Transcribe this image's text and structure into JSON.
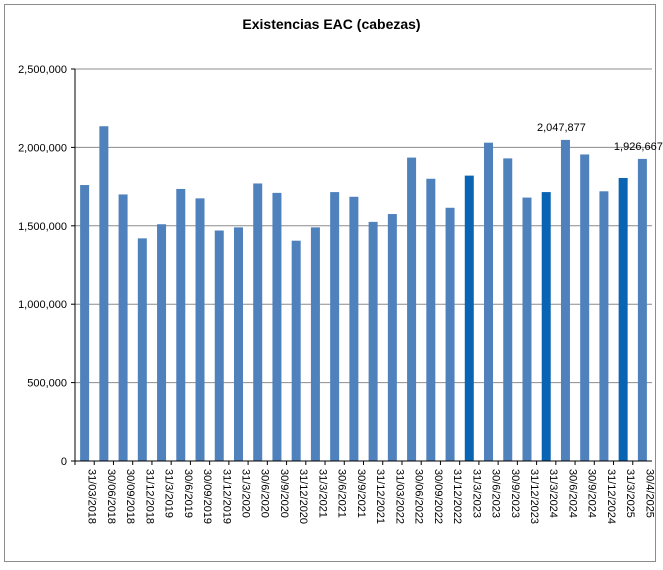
{
  "chart_data": {
    "type": "bar",
    "title": "Existencias EAC (cabezas)",
    "xlabel": "",
    "ylabel": "",
    "ylim": [
      0,
      2500000
    ],
    "yticks": [
      0,
      500000,
      1000000,
      1500000,
      2000000,
      2500000
    ],
    "ytick_labels": [
      "0",
      "500,000",
      "1,000,000",
      "1,500,000",
      "2,000,000",
      "2,500,000"
    ],
    "grid": true,
    "legend": "none",
    "colors": {
      "bar": "#4f81bd",
      "highlight": "#0a64b4",
      "grid": "#8c8c8c"
    },
    "categories": [
      "31/03/2018",
      "30/06/2018",
      "30/09/2018",
      "31/12/2018",
      "31/3/2019",
      "30/6/2019",
      "30/09/2019",
      "31/12/2019",
      "31/3/2020",
      "30/6/2020",
      "30/9/2020",
      "31/12/2020",
      "31/3/2021",
      "30/6/2021",
      "30/9/2021",
      "31/12/2021",
      "31/03/2022",
      "30/06/2022",
      "30/09/2022",
      "31/12/2022",
      "31/3/2023",
      "30/6/2023",
      "30/9/2023",
      "31/12/2023",
      "31/3/2024",
      "30/6/2024",
      "30/9/2024",
      "31/12/2024",
      "31/3/2025",
      "30/4/2025"
    ],
    "values": [
      1760000,
      2135000,
      1700000,
      1420000,
      1510000,
      1735000,
      1675000,
      1470000,
      1490000,
      1770000,
      1710000,
      1405000,
      1490000,
      1715000,
      1685000,
      1525000,
      1575000,
      1935000,
      1800000,
      1615000,
      1820000,
      2030000,
      1930000,
      1680000,
      1715000,
      2047877,
      1955000,
      1720000,
      1805000,
      1926667
    ],
    "highlighted": [
      "31/3/2023",
      "31/3/2024",
      "31/3/2025"
    ],
    "data_labels": [
      {
        "category": "30/6/2024",
        "text": "2,047,877"
      },
      {
        "category": "30/4/2025",
        "text": "1,926,667"
      }
    ]
  }
}
